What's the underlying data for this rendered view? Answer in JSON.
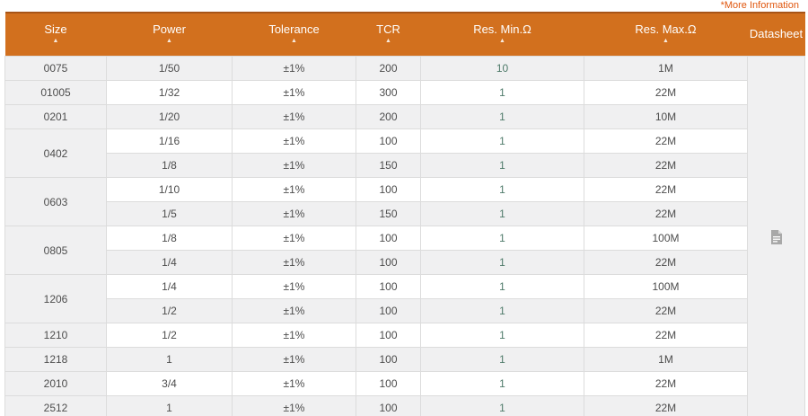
{
  "page": {
    "more_info": "*More Information"
  },
  "colors": {
    "header_bg": "#d2701e",
    "header_top_border": "#a75417",
    "header_text": "#ffffff",
    "row_shaded": "#f0f0f1",
    "row_white": "#ffffff",
    "cell_border": "#dcdcdc",
    "body_text": "#4d4d4d",
    "res_min_text": "#4f7b6a",
    "more_info_link": "#e0560d",
    "datasheet_icon": "#a8a8a8"
  },
  "table": {
    "sort_asc_icon": "▲",
    "columns": [
      {
        "key": "size",
        "label": "Size",
        "sortable": true
      },
      {
        "key": "power",
        "label": "Power",
        "sortable": true
      },
      {
        "key": "tolerance",
        "label": "Tolerance",
        "sortable": true
      },
      {
        "key": "tcr",
        "label": "TCR",
        "sortable": true
      },
      {
        "key": "res-min",
        "label": "Res. Min.Ω",
        "sortable": true
      },
      {
        "key": "res-max",
        "label": "Res. Max.Ω",
        "sortable": true
      },
      {
        "key": "datasheet",
        "label": "Datasheet",
        "sortable": false
      }
    ],
    "groups": [
      {
        "size": "0075",
        "rows": [
          [
            "1/50",
            "±1%",
            "200",
            "10",
            "1M"
          ]
        ]
      },
      {
        "size": "01005",
        "rows": [
          [
            "1/32",
            "±1%",
            "300",
            "1",
            "22M"
          ]
        ]
      },
      {
        "size": "0201",
        "rows": [
          [
            "1/20",
            "±1%",
            "200",
            "1",
            "10M"
          ]
        ]
      },
      {
        "size": "0402",
        "rows": [
          [
            "1/16",
            "±1%",
            "100",
            "1",
            "22M"
          ],
          [
            "1/8",
            "±1%",
            "150",
            "1",
            "22M"
          ]
        ]
      },
      {
        "size": "0603",
        "rows": [
          [
            "1/10",
            "±1%",
            "100",
            "1",
            "22M"
          ],
          [
            "1/5",
            "±1%",
            "150",
            "1",
            "22M"
          ]
        ]
      },
      {
        "size": "0805",
        "rows": [
          [
            "1/8",
            "±1%",
            "100",
            "1",
            "100M"
          ],
          [
            "1/4",
            "±1%",
            "100",
            "1",
            "22M"
          ]
        ]
      },
      {
        "size": "1206",
        "rows": [
          [
            "1/4",
            "±1%",
            "100",
            "1",
            "100M"
          ],
          [
            "1/2",
            "±1%",
            "100",
            "1",
            "22M"
          ]
        ]
      },
      {
        "size": "1210",
        "rows": [
          [
            "1/2",
            "±1%",
            "100",
            "1",
            "22M"
          ]
        ]
      },
      {
        "size": "1218",
        "rows": [
          [
            "1",
            "±1%",
            "100",
            "1",
            "1M"
          ]
        ]
      },
      {
        "size": "2010",
        "rows": [
          [
            "3/4",
            "±1%",
            "100",
            "1",
            "22M"
          ]
        ]
      },
      {
        "size": "2512",
        "rows": [
          [
            "1",
            "±1%",
            "100",
            "1",
            "22M"
          ]
        ]
      }
    ]
  }
}
